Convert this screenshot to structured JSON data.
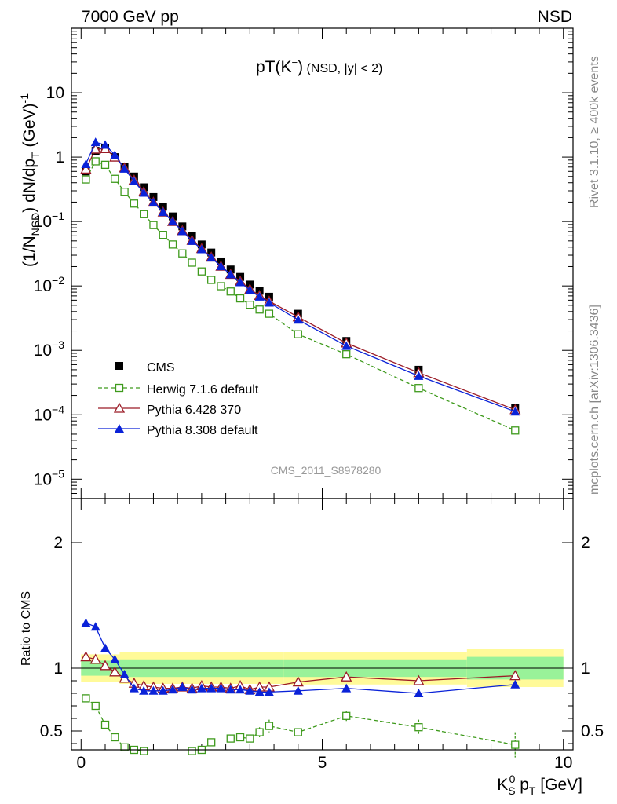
{
  "header": {
    "left": "7000 GeV pp",
    "right": "NSD"
  },
  "side_labels": {
    "upper": "Rivet 3.1.10, ≥ 400k events",
    "lower": "mcplots.cern.ch [arXiv:1306.3436]"
  },
  "plot_title": {
    "main": "pT(K",
    "sup": "−",
    "close": ")",
    "extra": " (NSD, |y| < 2)"
  },
  "watermark": "CMS_2011_S8978280",
  "colors": {
    "cms": "#000000",
    "herwig": "#3e9a1c",
    "pythia6": "#9b1b26",
    "pythia8": "#0a22d8",
    "band_inner": "#99f299",
    "band_outer": "#fffa99"
  },
  "chart_data": [
    {
      "type": "scatter",
      "panel": "main",
      "ylabel": "(1/N_NSD) dN/dp_T (GeV)^-1",
      "yscale": "log",
      "ylim": [
        5e-06,
        100
      ],
      "xlim": [
        -0.2,
        10.2
      ],
      "yticks": [
        {
          "value": 10,
          "base": "10",
          "exp": ""
        },
        {
          "value": 1,
          "base": "1",
          "exp": ""
        },
        {
          "value": 0.1,
          "base": "10",
          "exp": "−1"
        },
        {
          "value": 0.01,
          "base": "10",
          "exp": "−2"
        },
        {
          "value": 0.001,
          "base": "10",
          "exp": "−3"
        },
        {
          "value": 0.0001,
          "base": "10",
          "exp": "−4"
        },
        {
          "value": 1e-05,
          "base": "10",
          "exp": "−5"
        }
      ],
      "legend": {
        "position": "bottom-left",
        "entries": [
          "CMS",
          "Herwig 7.1.6 default",
          "Pythia 6.428 370",
          "Pythia 8.308 default"
        ]
      },
      "x": [
        0.1,
        0.3,
        0.5,
        0.7,
        0.9,
        1.1,
        1.3,
        1.5,
        1.7,
        1.9,
        2.1,
        2.3,
        2.5,
        2.7,
        2.9,
        3.1,
        3.3,
        3.5,
        3.7,
        3.9,
        4.5,
        5.5,
        7.0,
        9.0
      ],
      "series": [
        {
          "name": "CMS",
          "values": [
            0.6,
            1.25,
            1.4,
            1.0,
            0.7,
            0.5,
            0.34,
            0.24,
            0.17,
            0.12,
            0.084,
            0.06,
            0.044,
            0.033,
            0.024,
            0.018,
            0.0138,
            0.0105,
            0.0084,
            0.0068,
            0.0037,
            0.0014,
            0.0005,
            0.000128
          ]
        },
        {
          "name": "Herwig 7.1.6 default",
          "values": [
            0.45,
            0.86,
            0.76,
            0.46,
            0.29,
            0.19,
            0.13,
            0.088,
            0.062,
            0.044,
            0.032,
            0.023,
            0.0168,
            0.0124,
            0.0099,
            0.0082,
            0.0064,
            0.0051,
            0.0043,
            0.0037,
            0.00178,
            0.00087,
            0.00026,
            5.7e-05
          ]
        },
        {
          "name": "Pythia 6.428 370",
          "values": [
            0.65,
            1.33,
            1.35,
            1.0,
            0.68,
            0.44,
            0.29,
            0.2,
            0.14,
            0.1,
            0.072,
            0.051,
            0.038,
            0.028,
            0.0202,
            0.0151,
            0.0118,
            0.0089,
            0.0071,
            0.0058,
            0.0033,
            0.0013,
            0.00045,
            0.00012
          ]
        },
        {
          "name": "Pythia 8.308 default",
          "values": [
            0.78,
            1.7,
            1.55,
            1.08,
            0.66,
            0.42,
            0.28,
            0.198,
            0.14,
            0.1,
            0.071,
            0.05,
            0.037,
            0.0275,
            0.0202,
            0.0151,
            0.0114,
            0.0086,
            0.0068,
            0.0055,
            0.00298,
            0.00117,
            0.0004,
            0.000112
          ]
        }
      ]
    },
    {
      "type": "scatter",
      "panel": "ratio",
      "ylabel": "Ratio to CMS",
      "xlabel": "K_S^0 p_T [GeV]",
      "ylim": [
        0.35,
        2.35
      ],
      "xlim": [
        -0.2,
        10.2
      ],
      "yticks": [
        0.5,
        1,
        2
      ],
      "xticks": [
        0,
        5,
        10
      ],
      "bands": [
        {
          "x0": 0,
          "x1": 0.8,
          "inner": [
            0.94,
            1.06
          ],
          "outer": [
            0.89,
            1.11
          ]
        },
        {
          "x0": 0.8,
          "x1": 4.2,
          "inner": [
            0.93,
            1.07
          ],
          "outer": [
            0.875,
            1.125
          ]
        },
        {
          "x0": 4.2,
          "x1": 8.0,
          "inner": [
            0.93,
            1.07
          ],
          "outer": [
            0.87,
            1.13
          ]
        },
        {
          "x0": 8.0,
          "x1": 10.0,
          "inner": [
            0.91,
            1.09
          ],
          "outer": [
            0.85,
            1.15
          ]
        }
      ],
      "x": [
        0.1,
        0.3,
        0.5,
        0.7,
        0.9,
        1.1,
        1.3,
        1.5,
        1.7,
        1.9,
        2.1,
        2.3,
        2.5,
        2.7,
        2.9,
        3.1,
        3.3,
        3.5,
        3.7,
        3.9,
        4.5,
        5.5,
        7.0,
        9.0
      ],
      "series": [
        {
          "name": "Herwig 7.1.6 default",
          "values": [
            0.76,
            0.7,
            0.55,
            0.45,
            0.37,
            0.35,
            0.34,
            null,
            null,
            null,
            null,
            0.34,
            0.35,
            0.41,
            null,
            0.44,
            0.45,
            0.44,
            0.49,
            0.54,
            0.49,
            0.62,
            0.53,
            0.39
          ],
          "errors": [
            0.01,
            0.01,
            0.01,
            0.01,
            0.01,
            0.01,
            0.01,
            null,
            null,
            null,
            null,
            0.01,
            0.01,
            0.02,
            null,
            0.03,
            0.03,
            0.03,
            0.04,
            0.05,
            0.03,
            0.04,
            0.06,
            0.1
          ]
        },
        {
          "name": "Pythia 6.428 370",
          "values": [
            1.09,
            1.07,
            1.02,
            0.97,
            0.92,
            0.88,
            0.86,
            0.85,
            0.84,
            0.84,
            0.85,
            0.84,
            0.86,
            0.85,
            0.85,
            0.84,
            0.86,
            0.83,
            0.85,
            0.85,
            0.89,
            0.93,
            0.9,
            0.94
          ],
          "errors": []
        },
        {
          "name": "Pythia 8.308 default",
          "values": [
            1.36,
            1.33,
            1.16,
            1.07,
            0.95,
            0.84,
            0.82,
            0.82,
            0.82,
            0.83,
            0.85,
            0.83,
            0.84,
            0.84,
            0.84,
            0.83,
            0.83,
            0.82,
            0.81,
            0.81,
            0.82,
            0.84,
            0.8,
            0.87
          ],
          "errors": [
            0.02,
            0.02,
            0.01,
            0.01,
            0.01,
            0.01,
            0.01,
            0.01,
            0.01,
            0.01,
            0.01,
            0.01,
            0.01,
            0.01,
            0.01,
            0.01,
            0.01,
            0.01,
            0.01,
            0.01,
            0.01,
            0.01,
            0.01,
            0.02
          ]
        }
      ]
    }
  ]
}
